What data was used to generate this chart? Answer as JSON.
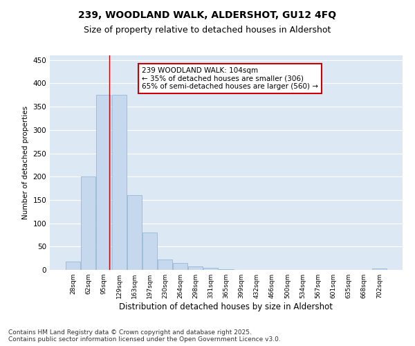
{
  "title": "239, WOODLAND WALK, ALDERSHOT, GU12 4FQ",
  "subtitle": "Size of property relative to detached houses in Aldershot",
  "xlabel": "Distribution of detached houses by size in Aldershot",
  "ylabel": "Number of detached properties",
  "categories": [
    "28sqm",
    "62sqm",
    "95sqm",
    "129sqm",
    "163sqm",
    "197sqm",
    "230sqm",
    "264sqm",
    "298sqm",
    "331sqm",
    "365sqm",
    "399sqm",
    "432sqm",
    "466sqm",
    "500sqm",
    "534sqm",
    "567sqm",
    "601sqm",
    "635sqm",
    "668sqm",
    "702sqm"
  ],
  "values": [
    18,
    200,
    375,
    375,
    160,
    80,
    22,
    15,
    7,
    4,
    1,
    0,
    0,
    0,
    0,
    0,
    0,
    0,
    0,
    0,
    3
  ],
  "bar_color": "#c5d8ee",
  "bar_edge_color": "#8ab0d0",
  "background_color": "#dde8f5",
  "grid_color": "#ffffff",
  "annotation_box_color": "#cc0000",
  "vline_color": "#cc0000",
  "vline_x": 2.35,
  "annotation_text": "239 WOODLAND WALK: 104sqm\n← 35% of detached houses are smaller (306)\n65% of semi-detached houses are larger (560) →",
  "ylim": [
    0,
    460
  ],
  "yticks": [
    0,
    50,
    100,
    150,
    200,
    250,
    300,
    350,
    400,
    450
  ],
  "footer": "Contains HM Land Registry data © Crown copyright and database right 2025.\nContains public sector information licensed under the Open Government Licence v3.0.",
  "title_fontsize": 10,
  "subtitle_fontsize": 9,
  "annotation_fontsize": 7.5,
  "footer_fontsize": 6.5,
  "fig_facecolor": "#ffffff"
}
